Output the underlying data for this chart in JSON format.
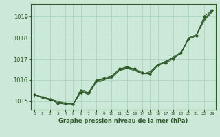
{
  "xlabel": "Graphe pression niveau de la mer (hPa)",
  "bg_color": "#cce8d8",
  "line_color": "#2d5a27",
  "grid_color": "#aad4be",
  "x_ticks": [
    0,
    1,
    2,
    3,
    4,
    5,
    6,
    7,
    8,
    9,
    10,
    11,
    12,
    13,
    14,
    15,
    16,
    17,
    18,
    19,
    20,
    21,
    22,
    23
  ],
  "ylim": [
    1014.6,
    1019.6
  ],
  "yticks": [
    1015,
    1016,
    1017,
    1018,
    1019
  ],
  "series_plain": [
    [
      1015.3,
      1015.2,
      1015.1,
      1014.9,
      1014.85,
      1014.8,
      1015.5,
      1015.35,
      1015.95,
      1016.1,
      1016.2,
      1016.5,
      1016.65,
      1016.5,
      1016.3,
      1016.35,
      1016.7,
      1016.9,
      1017.05,
      1017.25,
      1018.0,
      1018.15,
      1018.85,
      1019.25
    ],
    [
      1015.3,
      1015.2,
      1015.1,
      1015.0,
      1014.9,
      1014.85,
      1015.55,
      1015.4,
      1016.0,
      1016.05,
      1016.1,
      1016.45,
      1016.55,
      1016.45,
      1016.3,
      1016.4,
      1016.75,
      1016.85,
      1017.1,
      1017.3,
      1018.0,
      1018.15,
      1018.9,
      1019.25
    ],
    [
      1015.3,
      1015.15,
      1015.05,
      1014.95,
      1014.9,
      1014.85,
      1015.5,
      1015.3,
      1015.9,
      1016.0,
      1016.15,
      1016.45,
      1016.6,
      1016.5,
      1016.3,
      1016.3,
      1016.7,
      1016.85,
      1017.05,
      1017.25,
      1017.95,
      1018.1,
      1018.8,
      1019.2
    ]
  ],
  "series_with_markers": [
    {
      "y": [
        1015.3,
        1015.2,
        1015.1,
        1014.9,
        1014.9,
        1014.85,
        1015.4,
        1015.4,
        1015.95,
        1016.05,
        1016.15,
        1016.55,
        1016.6,
        1016.55,
        1016.35,
        1016.3,
        1016.7,
        1016.8,
        1017.0,
        1017.3,
        1017.95,
        1018.1,
        1019.0,
        1019.3
      ],
      "marker_x": [
        0,
        1,
        2,
        3,
        4,
        5,
        6,
        7,
        8,
        9,
        10,
        11,
        12,
        13,
        14,
        15,
        16,
        17,
        18,
        19,
        20,
        21,
        22,
        23
      ]
    }
  ]
}
